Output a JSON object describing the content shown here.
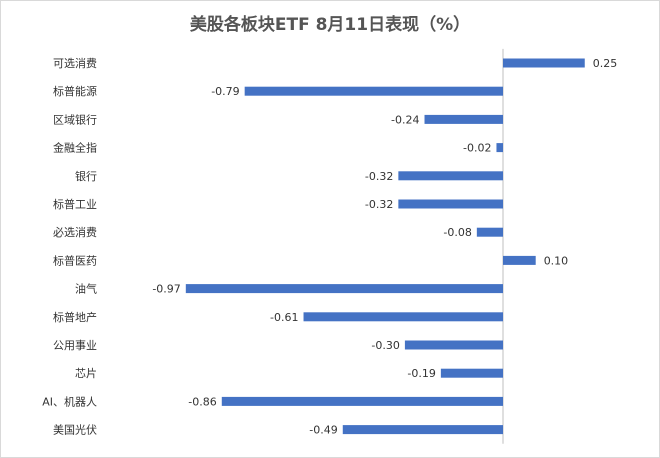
{
  "chart_data": {
    "type": "bar",
    "orientation": "horizontal",
    "title": "美股各板块ETF 8月11日表现（%）",
    "xlabel": "",
    "ylabel": "",
    "categories": [
      "可选消费",
      "标普能源",
      "区域银行",
      "金融全指",
      "银行",
      "标普工业",
      "必选消费",
      "标普医药",
      "油气",
      "标普地产",
      "公用事业",
      "芯片",
      "AI、机器人",
      "美国光伏"
    ],
    "values": [
      0.25,
      -0.79,
      -0.24,
      -0.02,
      -0.32,
      -0.32,
      -0.08,
      0.1,
      -0.97,
      -0.61,
      -0.3,
      -0.19,
      -0.86,
      -0.49
    ],
    "labels": [
      "0.25",
      "-0.79",
      "-0.24",
      "-0.02",
      "-0.32",
      "-0.32",
      "-0.08",
      "0.10",
      "-0.97",
      "-0.61",
      "-0.30",
      "-0.19",
      "-0.86",
      "-0.49"
    ],
    "xlim": [
      -1.0,
      0.25
    ],
    "bar_color": "#4472C4",
    "grid": false
  }
}
